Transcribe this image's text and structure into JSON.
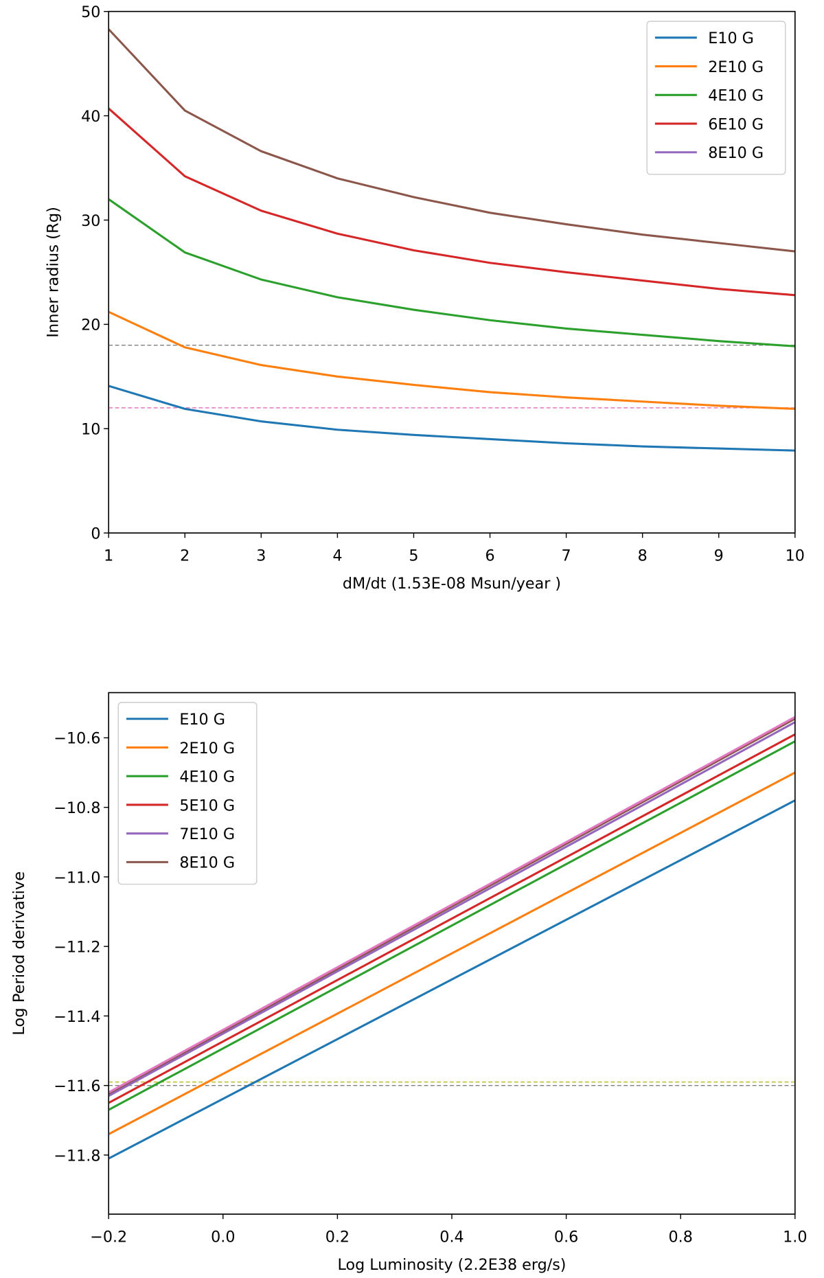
{
  "chart_data": [
    {
      "type": "line",
      "xlabel": "dM/dt (1.53E-08 Msun/year )",
      "ylabel": "Inner radius (Rg)",
      "x": [
        1,
        2,
        3,
        4,
        5,
        6,
        7,
        8,
        9,
        10
      ],
      "series": [
        {
          "color": "#1f77b4",
          "values": [
            14.1,
            11.9,
            10.7,
            9.9,
            9.4,
            9.0,
            8.6,
            8.3,
            8.1,
            7.9
          ]
        },
        {
          "color": "#ff7f0e",
          "values": [
            21.2,
            17.8,
            16.1,
            15.0,
            14.2,
            13.5,
            13.0,
            12.6,
            12.2,
            11.9
          ]
        },
        {
          "color": "#2ca02c",
          "values": [
            32.0,
            26.9,
            24.3,
            22.6,
            21.4,
            20.4,
            19.6,
            19.0,
            18.4,
            17.9
          ]
        },
        {
          "color": "#d62728",
          "values": [
            40.7,
            34.2,
            30.9,
            28.7,
            27.1,
            25.9,
            25.0,
            24.2,
            23.4,
            22.8
          ]
        },
        {
          "color": "#8c564b",
          "values": [
            48.3,
            40.5,
            36.6,
            34.0,
            32.2,
            30.7,
            29.6,
            28.6,
            27.8,
            27.0
          ]
        }
      ],
      "hlines": [
        {
          "value": 18,
          "color": "#7f7f7f"
        },
        {
          "value": 12,
          "color": "#e377c2"
        }
      ],
      "legend": [
        {
          "name": "E10 G",
          "color": "#1f77b4"
        },
        {
          "name": "2E10 G",
          "color": "#ff7f0e"
        },
        {
          "name": "4E10 G",
          "color": "#2ca02c"
        },
        {
          "name": "6E10 G",
          "color": "#d62728"
        },
        {
          "name": "8E10 G",
          "color": "#9467bd"
        }
      ],
      "legend_position": "upper right",
      "xlim": [
        1,
        10
      ],
      "xticks": [
        1,
        2,
        3,
        4,
        5,
        6,
        7,
        8,
        9,
        10
      ],
      "ylim": [
        0,
        50
      ],
      "yticks": [
        0,
        10,
        20,
        30,
        40,
        50
      ]
    },
    {
      "type": "line",
      "xlabel": "Log Luminosity (2.2E38 erg/s)",
      "ylabel": "Log Period derivative",
      "x": [
        -0.2,
        1.0
      ],
      "series": [
        {
          "color": "#1f77b4",
          "values": [
            -11.81,
            -10.78
          ]
        },
        {
          "color": "#ff7f0e",
          "values": [
            -11.74,
            -10.7
          ]
        },
        {
          "color": "#2ca02c",
          "values": [
            -11.67,
            -10.61
          ]
        },
        {
          "color": "#d62728",
          "values": [
            -11.65,
            -10.59
          ]
        },
        {
          "color": "#8c564b",
          "values": [
            -11.625,
            -10.545
          ]
        },
        {
          "color": "#9467bd",
          "values": [
            -11.63,
            -10.555
          ]
        },
        {
          "color": "#e377c2",
          "values": [
            -11.62,
            -10.54
          ]
        }
      ],
      "hlines": [
        {
          "value": -11.59,
          "color": "#bcbd22"
        },
        {
          "value": -11.6,
          "color": "#7f7f7f"
        }
      ],
      "legend": [
        {
          "name": "E10 G",
          "color": "#1f77b4"
        },
        {
          "name": "2E10 G",
          "color": "#ff7f0e"
        },
        {
          "name": "4E10 G",
          "color": "#2ca02c"
        },
        {
          "name": "5E10 G",
          "color": "#d62728"
        },
        {
          "name": "7E10 G",
          "color": "#9467bd"
        },
        {
          "name": "8E10 G",
          "color": "#8c564b"
        }
      ],
      "legend_position": "upper left",
      "xlim": [
        -0.2,
        1.0
      ],
      "xticks": [
        {
          "value": -0.2,
          "label": "−0.2"
        },
        {
          "value": 0,
          "label": "0.0"
        },
        0.2,
        0.4,
        0.6,
        0.8,
        {
          "value": 1.0,
          "label": "1.0"
        }
      ],
      "ylim": [
        -11.97,
        -10.47
      ],
      "yticks": [
        {
          "value": -11.8,
          "label": "−11.8"
        },
        {
          "value": -11.6,
          "label": "−11.6"
        },
        {
          "value": -11.4,
          "label": "−11.4"
        },
        {
          "value": -11.2,
          "label": "−11.2"
        },
        {
          "value": -11.0,
          "label": "−11.0"
        },
        {
          "value": -10.8,
          "label": "−10.8"
        },
        {
          "value": -10.6,
          "label": "−10.6"
        }
      ]
    }
  ]
}
